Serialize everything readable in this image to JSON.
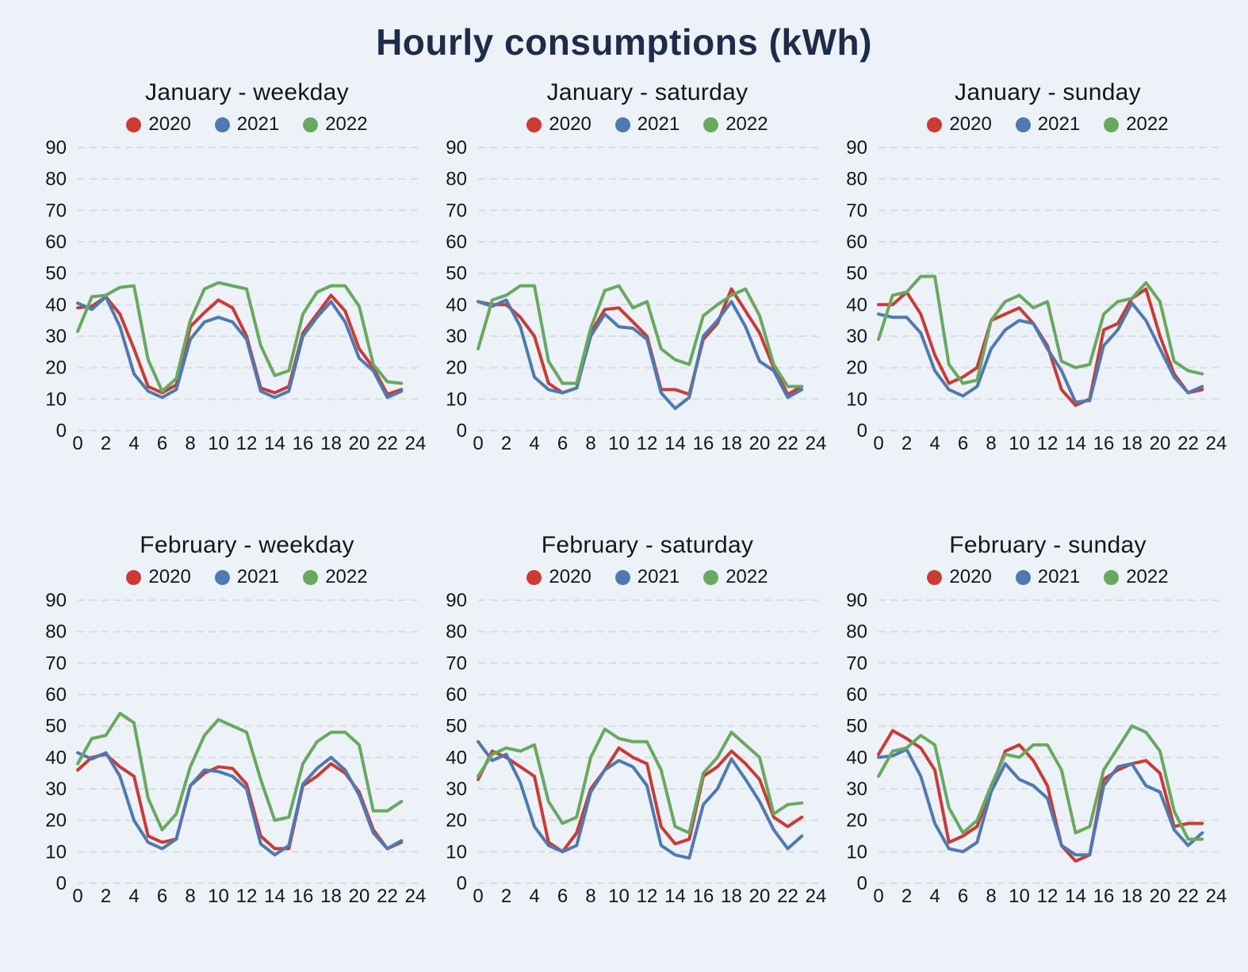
{
  "page": {
    "title": "Hourly consumptions (kWh)"
  },
  "style": {
    "background": "#edf2f8",
    "title_color": "#1e2b49",
    "axis_text_color": "#14161b",
    "grid_color": "#d9dce2",
    "series_colors": {
      "2020": "#cc3b33",
      "2021": "#4d7ab3",
      "2022": "#68a95f"
    }
  },
  "legend": [
    "2020",
    "2021",
    "2022"
  ],
  "axes": {
    "yticks": [
      0,
      10,
      20,
      30,
      40,
      50,
      60,
      70,
      80,
      90
    ],
    "xticks": [
      0,
      2,
      4,
      6,
      8,
      10,
      12,
      14,
      16,
      18,
      20,
      22,
      24
    ],
    "ylim": [
      0,
      95
    ],
    "xlim": [
      0,
      24
    ],
    "grid": "horizontal-dashed"
  },
  "chart_data": [
    {
      "type": "line",
      "title": "January - weekday",
      "x": [
        0,
        1,
        2,
        3,
        4,
        5,
        6,
        7,
        8,
        9,
        10,
        11,
        12,
        13,
        14,
        15,
        16,
        17,
        18,
        19,
        20,
        21,
        22,
        23
      ],
      "series": [
        {
          "name": "2020",
          "values": [
            39,
            39.5,
            42.5,
            37,
            26,
            14,
            12,
            14.5,
            33,
            37.5,
            41.5,
            39,
            30,
            13.5,
            12,
            14,
            31,
            37,
            43,
            38,
            26,
            20,
            11.5,
            13
          ]
        },
        {
          "name": "2021",
          "values": [
            40.5,
            38.5,
            42.5,
            33,
            18,
            12.5,
            10.5,
            13,
            29,
            34.5,
            36,
            34.5,
            29,
            12.5,
            10.5,
            12.5,
            30,
            36,
            41,
            34.5,
            23,
            19,
            10.5,
            12.5
          ]
        },
        {
          "name": "2022",
          "values": [
            31.5,
            42.5,
            43,
            45.5,
            46,
            22.5,
            12.5,
            16.5,
            35,
            45,
            47,
            46,
            45,
            27,
            17.5,
            19,
            37,
            44,
            46,
            46,
            39.5,
            21,
            15.5,
            15
          ]
        }
      ]
    },
    {
      "type": "line",
      "title": "January - saturday",
      "x": [
        0,
        1,
        2,
        3,
        4,
        5,
        6,
        7,
        8,
        9,
        10,
        11,
        12,
        13,
        14,
        15,
        16,
        17,
        18,
        19,
        20,
        21,
        22,
        23
      ],
      "series": [
        {
          "name": "2020",
          "values": [
            41,
            40,
            40,
            36,
            30,
            15,
            12,
            13.5,
            31,
            38.5,
            39,
            34.5,
            30,
            13,
            13,
            11.5,
            29,
            34,
            45,
            38,
            31,
            20,
            11.5,
            14
          ]
        },
        {
          "name": "2021",
          "values": [
            41,
            39.5,
            41.5,
            33,
            17,
            13,
            12,
            13.5,
            30,
            37,
            33,
            32.5,
            29,
            12,
            7,
            10.5,
            30,
            35,
            41,
            33,
            22,
            19,
            10.5,
            13
          ]
        },
        {
          "name": "2022",
          "values": [
            26,
            41.5,
            43,
            46,
            46,
            22,
            15,
            15,
            32.5,
            44.5,
            46,
            39,
            41,
            26,
            22.5,
            21,
            36.5,
            40,
            43,
            45,
            36.5,
            21,
            14,
            14
          ]
        }
      ]
    },
    {
      "type": "line",
      "title": "January - sunday",
      "x": [
        0,
        1,
        2,
        3,
        4,
        5,
        6,
        7,
        8,
        9,
        10,
        11,
        12,
        13,
        14,
        15,
        16,
        17,
        18,
        19,
        20,
        21,
        22,
        23
      ],
      "series": [
        {
          "name": "2020",
          "values": [
            40,
            40,
            44,
            37,
            24,
            15,
            17,
            20,
            35,
            37,
            39,
            34,
            27,
            13,
            8,
            10,
            32,
            34,
            42,
            45,
            30,
            18,
            12,
            13
          ]
        },
        {
          "name": "2021",
          "values": [
            37,
            36,
            36,
            31,
            19,
            13,
            11,
            14,
            26,
            32,
            35,
            34,
            26,
            19,
            9,
            9.5,
            27,
            32,
            40.5,
            35,
            26,
            17,
            12,
            14
          ]
        },
        {
          "name": "2022",
          "values": [
            29,
            43,
            44,
            49,
            49,
            21,
            15,
            16,
            35,
            41,
            43,
            39,
            41,
            22,
            20,
            21,
            37,
            41,
            42,
            47,
            41,
            22,
            19,
            18
          ]
        }
      ]
    },
    {
      "type": "line",
      "title": "February - weekday",
      "x": [
        0,
        1,
        2,
        3,
        4,
        5,
        6,
        7,
        8,
        9,
        10,
        11,
        12,
        13,
        14,
        15,
        16,
        17,
        18,
        19,
        20,
        21,
        22,
        23
      ],
      "series": [
        {
          "name": "2020",
          "values": [
            36,
            40,
            41,
            37,
            34,
            15,
            13,
            14,
            31,
            35,
            37,
            36.5,
            31.5,
            15,
            11,
            11,
            31,
            34,
            38,
            35,
            29,
            17,
            11,
            13
          ]
        },
        {
          "name": "2021",
          "values": [
            41.5,
            39.5,
            41.5,
            34,
            20,
            13,
            11,
            14,
            31,
            36,
            35.5,
            34,
            30,
            12.5,
            9,
            12,
            31.5,
            36.5,
            40,
            36,
            28,
            16,
            11,
            13.5
          ]
        },
        {
          "name": "2022",
          "values": [
            38,
            46,
            47,
            54,
            51,
            27,
            17,
            22,
            37,
            47,
            52,
            50,
            48,
            33,
            20,
            21,
            38,
            45,
            48,
            48,
            44,
            23,
            23,
            26
          ]
        }
      ]
    },
    {
      "type": "line",
      "title": "February - saturday",
      "x": [
        0,
        1,
        2,
        3,
        4,
        5,
        6,
        7,
        8,
        9,
        10,
        11,
        12,
        13,
        14,
        15,
        16,
        17,
        18,
        19,
        20,
        21,
        22,
        23
      ],
      "series": [
        {
          "name": "2020",
          "values": [
            33,
            42,
            40,
            37,
            34,
            13,
            10,
            16,
            30,
            36,
            43,
            40,
            38,
            18,
            12.5,
            14,
            34,
            37,
            42,
            38,
            33,
            21,
            18,
            21
          ]
        },
        {
          "name": "2021",
          "values": [
            45,
            39,
            41,
            32,
            18,
            12,
            10,
            12,
            29,
            36,
            39,
            37,
            31,
            12,
            9,
            8,
            25,
            30,
            39.5,
            33,
            26,
            17,
            11,
            15
          ]
        },
        {
          "name": "2022",
          "values": [
            34,
            41,
            43,
            42,
            44,
            26,
            19,
            21,
            40,
            49,
            46,
            45,
            45,
            36,
            18,
            16,
            35,
            40,
            48,
            44,
            40,
            22,
            25,
            25.5
          ]
        }
      ]
    },
    {
      "type": "line",
      "title": "February - sunday",
      "x": [
        0,
        1,
        2,
        3,
        4,
        5,
        6,
        7,
        8,
        9,
        10,
        11,
        12,
        13,
        14,
        15,
        16,
        17,
        18,
        19,
        20,
        21,
        22,
        23
      ],
      "series": [
        {
          "name": "2020",
          "values": [
            41,
            48.5,
            46,
            43,
            36,
            13,
            15,
            18,
            30,
            42,
            44,
            39,
            31,
            12,
            7,
            9,
            33,
            36,
            38,
            39,
            35,
            18,
            19,
            19
          ]
        },
        {
          "name": "2021",
          "values": [
            40,
            40.5,
            42.5,
            34,
            19,
            11,
            10,
            13,
            29,
            38,
            33,
            31,
            27,
            12,
            9,
            9,
            31,
            37,
            38,
            31,
            29,
            17,
            12,
            16
          ]
        },
        {
          "name": "2022",
          "values": [
            34,
            42,
            43,
            47,
            44,
            24,
            16,
            20,
            31,
            41,
            40,
            44,
            44,
            36,
            16,
            18,
            36,
            43,
            50,
            48,
            42,
            23,
            14,
            14
          ]
        }
      ]
    }
  ]
}
